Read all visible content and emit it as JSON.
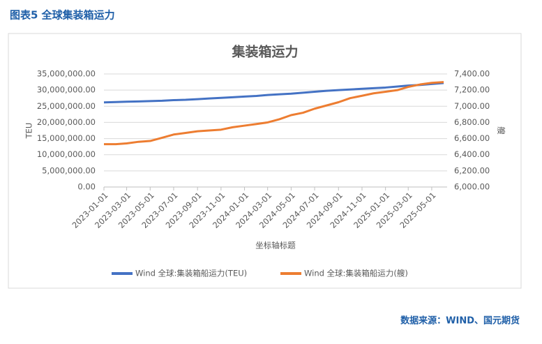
{
  "header": {
    "title": "图表5  全球集装箱运力"
  },
  "footer": {
    "source": "数据来源：WIND、国元期货"
  },
  "chart_data": {
    "type": "line",
    "title": "集装箱运力",
    "x_label": "坐标轴标题",
    "y_label": "TEU",
    "y2_label": "艘",
    "x": [
      "2023-01-01",
      "2023-02-01",
      "2023-03-01",
      "2023-04-01",
      "2023-05-01",
      "2023-06-01",
      "2023-07-01",
      "2023-08-01",
      "2023-09-01",
      "2023-10-01",
      "2023-11-01",
      "2023-12-01",
      "2024-01-01",
      "2024-02-01",
      "2024-03-01",
      "2024-04-01",
      "2024-05-01",
      "2024-06-01",
      "2024-07-01",
      "2024-08-01",
      "2024-09-01",
      "2024-10-01",
      "2024-11-01",
      "2024-12-01",
      "2025-01-01",
      "2025-02-01",
      "2025-03-01",
      "2025-04-01",
      "2025-05-01",
      "2025-06-01"
    ],
    "xlim": [
      "2023-01-01",
      "2025-06-10"
    ],
    "xticks": [
      "2023-01-01",
      "2023-03-01",
      "2023-05-01",
      "2023-07-01",
      "2023-09-01",
      "2023-11-01",
      "2024-01-01",
      "2024-03-01",
      "2024-05-01",
      "2024-07-01",
      "2024-09-01",
      "2024-11-01",
      "2025-01-01",
      "2025-03-01",
      "2025-05-01"
    ],
    "ylim": [
      0,
      35000000
    ],
    "yticks": [
      {
        "value": 0,
        "label": "0.00"
      },
      {
        "value": 5000000,
        "label": "5,000,000.00"
      },
      {
        "value": 10000000,
        "label": "10,000,000.00"
      },
      {
        "value": 15000000,
        "label": "15,000,000.00"
      },
      {
        "value": 20000000,
        "label": "20,000,000.00"
      },
      {
        "value": 25000000,
        "label": "25,000,000.00"
      },
      {
        "value": 30000000,
        "label": "30,000,000.00"
      },
      {
        "value": 35000000,
        "label": "35,000,000.00"
      }
    ],
    "y2lim": [
      6000,
      7400
    ],
    "y2ticks": [
      {
        "value": 6000,
        "label": "6,000.00"
      },
      {
        "value": 6200,
        "label": "6,200.00"
      },
      {
        "value": 6400,
        "label": "6,400.00"
      },
      {
        "value": 6600,
        "label": "6,600.00"
      },
      {
        "value": 6800,
        "label": "6,800.00"
      },
      {
        "value": 7000,
        "label": "7,000.00"
      },
      {
        "value": 7200,
        "label": "7,200.00"
      },
      {
        "value": 7400,
        "label": "7,400.00"
      }
    ],
    "grid": true,
    "legend": "bottom",
    "series": [
      {
        "name": "Wind 全球:集装箱船运力(TEU)",
        "color": "#4472c4",
        "values": [
          26200000,
          26300000,
          26400000,
          26500000,
          26600000,
          26700000,
          26900000,
          27000000,
          27200000,
          27400000,
          27600000,
          27800000,
          28000000,
          28200000,
          28500000,
          28700000,
          28900000,
          29200000,
          29500000,
          29800000,
          30000000,
          30200000,
          30400000,
          30600000,
          30800000,
          31100000,
          31400000,
          31600000,
          31900000,
          32200000
        ]
      },
      {
        "name": "Wind 全球:集装箱船运力(艘)",
        "color": "#ed7d31",
        "axis": "y2",
        "values": [
          6530,
          6530,
          6540,
          6560,
          6570,
          6610,
          6650,
          6670,
          6690,
          6700,
          6710,
          6740,
          6760,
          6780,
          6800,
          6840,
          6890,
          6920,
          6970,
          7010,
          7050,
          7100,
          7130,
          7160,
          7180,
          7200,
          7240,
          7270,
          7290,
          7300
        ]
      }
    ]
  }
}
